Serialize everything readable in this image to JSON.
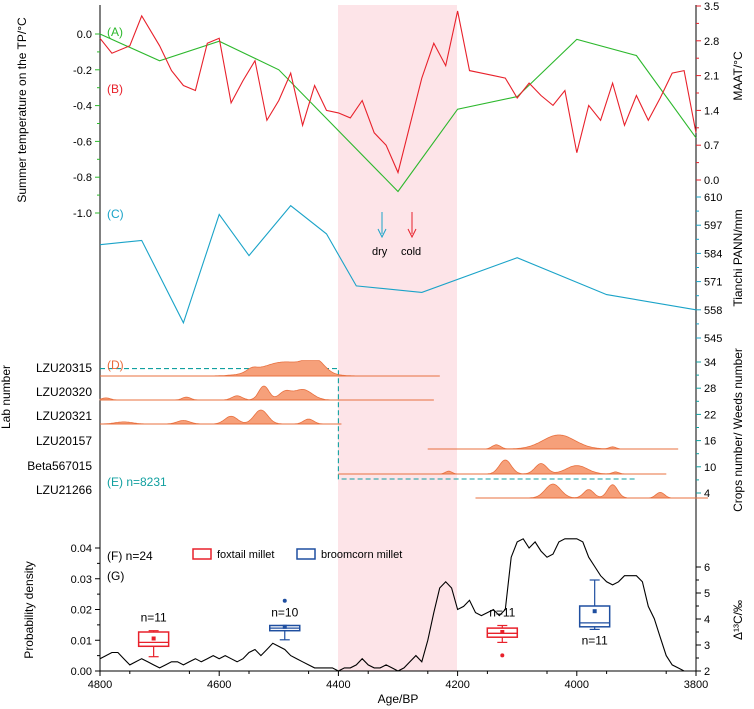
{
  "chart_data": {
    "type": "line",
    "xlabel": "Age/BP",
    "x_ticks": [
      4800,
      4600,
      4400,
      4200,
      4000,
      3800
    ],
    "xlim": [
      4800,
      3800
    ],
    "highlight_band": [
      4400,
      4200
    ],
    "arrow_labels": {
      "dry": "dry",
      "cold": "cold"
    },
    "panels": {
      "A": {
        "label": "(A)",
        "ylabel": "Summer temperature on the TP/°C",
        "y_ticks": [
          "0.0",
          "-0.2",
          "-0.4",
          "-0.6",
          "-0.8",
          "-1.0"
        ],
        "ylim": [
          -1.05,
          0.1
        ],
        "color": "#2db82d",
        "x": [
          4800,
          4700,
          4600,
          4500,
          4300,
          4200,
          4100,
          4000,
          3900,
          3800
        ],
        "values": [
          0.0,
          -0.15,
          -0.04,
          -0.2,
          -0.88,
          -0.42,
          -0.35,
          -0.03,
          -0.12,
          -0.58
        ]
      },
      "B": {
        "label": "(B)",
        "ylabel": "MAAT/°C",
        "y_ticks": [
          "3.5",
          "2.8",
          "2.1",
          "1.4",
          "0.7",
          "0.0"
        ],
        "ylim": [
          0,
          3.5
        ],
        "color": "#e8212b",
        "x": [
          4800,
          4780,
          4750,
          4730,
          4700,
          4680,
          4660,
          4640,
          4620,
          4600,
          4580,
          4560,
          4540,
          4520,
          4500,
          4480,
          4460,
          4440,
          4420,
          4400,
          4380,
          4360,
          4340,
          4320,
          4300,
          4280,
          4260,
          4240,
          4220,
          4200,
          4180,
          4160,
          4140,
          4120,
          4100,
          4080,
          4060,
          4040,
          4020,
          4000,
          3980,
          3960,
          3940,
          3920,
          3900,
          3880,
          3860,
          3840,
          3820,
          3800
        ],
        "values": [
          2.85,
          2.55,
          2.7,
          3.3,
          2.7,
          2.2,
          1.9,
          1.8,
          2.75,
          2.85,
          1.55,
          2.0,
          2.4,
          1.2,
          1.6,
          2.15,
          1.1,
          1.9,
          1.4,
          1.35,
          1.25,
          1.6,
          0.95,
          0.7,
          0.15,
          1.1,
          2.05,
          2.75,
          2.3,
          3.4,
          2.2,
          2.15,
          2.1,
          2.05,
          1.65,
          1.95,
          1.7,
          1.5,
          1.8,
          0.55,
          1.5,
          1.2,
          1.95,
          1.1,
          1.7,
          1.2,
          1.65,
          2.15,
          2.2,
          0.95
        ]
      },
      "C": {
        "label": "(C)",
        "ylabel": "Tianchi PANN/mm",
        "y_ticks": [
          "610",
          "597",
          "584",
          "571",
          "558",
          "545"
        ],
        "ylim": [
          545,
          610
        ],
        "color": "#1aa3c8",
        "x": [
          4800,
          4730,
          4660,
          4600,
          4550,
          4480,
          4420,
          4370,
          4260,
          4100,
          3950,
          3800
        ],
        "values": [
          588,
          590,
          552,
          602,
          583,
          606,
          593,
          569,
          566,
          582,
          565,
          558
        ]
      },
      "D": {
        "label": "(D)",
        "ylabel": "Lab number",
        "color": "#f4885c",
        "samples": [
          {
            "lab": "LZU20315",
            "range": [
              4800,
              4230
            ],
            "peaks": [
              {
                "c": 4490,
                "w": 55,
                "h": 1.0
              },
              {
                "c": 4440,
                "w": 22,
                "h": 0.9
              },
              {
                "c": 4545,
                "w": 12,
                "h": 0.25
              }
            ]
          },
          {
            "lab": "LZU20320",
            "range": [
              4800,
              4240
            ],
            "peaks": [
              {
                "c": 4525,
                "w": 12,
                "h": 1.0
              },
              {
                "c": 4460,
                "w": 22,
                "h": 0.75
              },
              {
                "c": 4490,
                "w": 14,
                "h": 0.55
              },
              {
                "c": 4570,
                "w": 12,
                "h": 0.3
              },
              {
                "c": 4655,
                "w": 10,
                "h": 0.2
              },
              {
                "c": 4790,
                "w": 10,
                "h": 0.15
              }
            ]
          },
          {
            "lab": "LZU20321",
            "range": [
              4800,
              4395
            ],
            "peaks": [
              {
                "c": 4530,
                "w": 16,
                "h": 1.0
              },
              {
                "c": 4580,
                "w": 15,
                "h": 0.55
              },
              {
                "c": 4450,
                "w": 12,
                "h": 0.35
              },
              {
                "c": 4660,
                "w": 15,
                "h": 0.25
              },
              {
                "c": 4760,
                "w": 20,
                "h": 0.15
              }
            ]
          }
        ]
      },
      "E": {
        "label": "(E) n=8231",
        "ylabel": "Crops number/ Weeds number",
        "y_ticks": [
          "34",
          "28",
          "22",
          "16",
          "10",
          "4"
        ],
        "ylim": [
          4,
          34
        ],
        "color": "#11a0a0",
        "x": [
          4800,
          4400,
          4400,
          3900
        ],
        "values": [
          32.5,
          32.5,
          7.2,
          7.2
        ],
        "samples": [
          {
            "lab": "LZU20157",
            "range": [
              4250,
              3830
            ],
            "peaks": [
              {
                "c": 4030,
                "w": 38,
                "h": 1.0
              },
              {
                "c": 4135,
                "w": 10,
                "h": 0.3
              },
              {
                "c": 3940,
                "w": 8,
                "h": 0.15
              }
            ]
          },
          {
            "lab": "Beta567015",
            "range": [
              4400,
              3850
            ],
            "peaks": [
              {
                "c": 4120,
                "w": 14,
                "h": 1.0
              },
              {
                "c": 4060,
                "w": 14,
                "h": 0.75
              },
              {
                "c": 4000,
                "w": 25,
                "h": 0.6
              },
              {
                "c": 4215,
                "w": 8,
                "h": 0.2
              },
              {
                "c": 3935,
                "w": 8,
                "h": 0.15
              }
            ]
          },
          {
            "lab": "LZU21266",
            "range": [
              4170,
              3780
            ],
            "peaks": [
              {
                "c": 4040,
                "w": 18,
                "h": 1.0
              },
              {
                "c": 3940,
                "w": 12,
                "h": 0.95
              },
              {
                "c": 3980,
                "w": 12,
                "h": 0.6
              },
              {
                "c": 3860,
                "w": 10,
                "h": 0.4
              }
            ]
          }
        ]
      },
      "F": {
        "label": "(F) n=24",
        "ylabel": "Probability density",
        "y_ticks": [
          "0.04",
          "0.03",
          "0.02",
          "0.01",
          "0.00"
        ],
        "ylim": [
          0,
          0.045
        ],
        "color": "#000000",
        "x": [
          4800,
          4790,
          4780,
          4770,
          4760,
          4750,
          4740,
          4730,
          4720,
          4710,
          4700,
          4690,
          4680,
          4670,
          4660,
          4650,
          4640,
          4630,
          4620,
          4610,
          4600,
          4590,
          4580,
          4570,
          4560,
          4550,
          4540,
          4530,
          4520,
          4510,
          4500,
          4490,
          4480,
          4470,
          4460,
          4450,
          4440,
          4430,
          4420,
          4410,
          4400,
          4390,
          4380,
          4370,
          4360,
          4350,
          4340,
          4330,
          4320,
          4310,
          4300,
          4290,
          4280,
          4270,
          4260,
          4250,
          4240,
          4230,
          4220,
          4210,
          4200,
          4190,
          4180,
          4170,
          4160,
          4150,
          4140,
          4130,
          4120,
          4110,
          4100,
          4090,
          4080,
          4070,
          4060,
          4050,
          4040,
          4030,
          4020,
          4010,
          4000,
          3990,
          3980,
          3970,
          3960,
          3950,
          3940,
          3930,
          3920,
          3910,
          3900,
          3890,
          3880,
          3870,
          3860,
          3850,
          3840,
          3830,
          3820,
          3810,
          3800
        ],
        "values": [
          0.004,
          0.005,
          0.006,
          0.006,
          0.004,
          0.002,
          0.003,
          0.004,
          0.003,
          0.002,
          0.001,
          0.002,
          0.003,
          0.003,
          0.002,
          0.003,
          0.004,
          0.003,
          0.004,
          0.005,
          0.004,
          0.005,
          0.004,
          0.003,
          0.004,
          0.006,
          0.007,
          0.005,
          0.007,
          0.009,
          0.008,
          0.007,
          0.005,
          0.004,
          0.003,
          0.002,
          0.001,
          0.001,
          0.001,
          0.001,
          0.0,
          0.001,
          0.001,
          0.002,
          0.004,
          0.002,
          0.001,
          0.001,
          0.002,
          0.001,
          0.0,
          0.001,
          0.003,
          0.005,
          0.003,
          0.01,
          0.019,
          0.027,
          0.029,
          0.027,
          0.02,
          0.021,
          0.023,
          0.019,
          0.018,
          0.019,
          0.02,
          0.018,
          0.02,
          0.037,
          0.042,
          0.043,
          0.04,
          0.042,
          0.039,
          0.037,
          0.038,
          0.042,
          0.043,
          0.043,
          0.043,
          0.042,
          0.037,
          0.034,
          0.031,
          0.029,
          0.028,
          0.029,
          0.031,
          0.031,
          0.031,
          0.029,
          0.021,
          0.017,
          0.011,
          0.005,
          0.002,
          0.001,
          0.0,
          0.0,
          0.0
        ]
      },
      "G": {
        "label": "(G)",
        "ylabel": "Δ¹³C/‰",
        "y_ticks": [
          "6",
          "5",
          "4",
          "3",
          "2"
        ],
        "ylim": [
          2,
          6.3
        ],
        "legend": [
          {
            "name": "foxtail millet",
            "color": "#e8212b"
          },
          {
            "name": "broomcorn millet",
            "color": "#1f4fa0"
          }
        ],
        "boxes": [
          {
            "name": "foxtail millet",
            "x": 4710,
            "min": 2.55,
            "q1": 2.95,
            "median": 3.1,
            "mean": 3.25,
            "q3": 3.5,
            "max": 3.55,
            "outliers": [],
            "n": "n=11",
            "n_pos": "above"
          },
          {
            "name": "broomcorn millet",
            "x": 4490,
            "min": 3.2,
            "q1": 3.55,
            "median": 3.65,
            "mean": 3.7,
            "q3": 3.75,
            "max": 3.75,
            "outliers": [
              4.7
            ],
            "n": "n=10",
            "n_pos": "above"
          },
          {
            "name": "foxtail millet",
            "x": 4125,
            "min": 3.1,
            "q1": 3.3,
            "median": 3.45,
            "mean": 3.5,
            "q3": 3.65,
            "max": 3.75,
            "outliers": [
              2.6
            ],
            "n": "n=11",
            "n_pos": "above"
          },
          {
            "name": "broomcorn millet",
            "x": 3970,
            "min": 3.6,
            "q1": 3.7,
            "median": 3.85,
            "mean": 4.3,
            "q3": 4.5,
            "max": 5.5,
            "outliers": [],
            "n": "n=11",
            "n_pos": "below"
          }
        ]
      }
    }
  }
}
